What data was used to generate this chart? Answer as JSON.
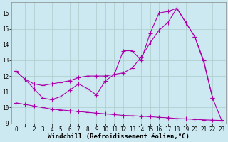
{
  "line1_x": [
    0,
    1,
    2,
    3,
    4,
    5,
    6,
    7,
    8,
    9,
    10,
    11,
    12,
    13,
    14,
    15,
    16,
    17,
    18,
    19,
    20,
    21,
    22
  ],
  "line1_y": [
    12.3,
    11.8,
    11.2,
    10.6,
    10.5,
    10.7,
    11.1,
    11.5,
    11.2,
    10.8,
    11.7,
    12.1,
    13.6,
    13.6,
    13.0,
    14.7,
    16.0,
    16.1,
    16.3,
    15.4,
    14.5,
    12.9,
    10.6
  ],
  "line2_x": [
    0,
    1,
    2,
    3,
    4,
    5,
    6,
    7,
    8,
    9,
    10,
    11,
    12,
    13,
    14,
    15,
    16,
    17,
    18,
    19,
    20,
    21,
    22,
    23
  ],
  "line2_y": [
    12.3,
    11.8,
    11.5,
    11.4,
    11.5,
    11.6,
    11.7,
    11.9,
    12.0,
    12.0,
    12.0,
    12.1,
    12.2,
    12.5,
    13.2,
    14.1,
    14.9,
    15.4,
    16.3,
    15.4,
    14.5,
    13.0,
    10.6,
    9.2
  ],
  "line3_x": [
    0,
    1,
    2,
    3,
    4,
    5,
    6,
    7,
    8,
    9,
    10,
    11,
    12,
    13,
    14,
    15,
    16,
    17,
    18,
    19,
    20,
    21,
    22,
    23
  ],
  "line3_y": [
    10.3,
    10.2,
    10.1,
    10.0,
    9.9,
    9.85,
    9.8,
    9.75,
    9.7,
    9.65,
    9.6,
    9.55,
    9.5,
    9.48,
    9.45,
    9.42,
    9.38,
    9.35,
    9.3,
    9.28,
    9.25,
    9.22,
    9.2,
    9.18
  ],
  "xlim": [
    -0.5,
    23.5
  ],
  "ylim": [
    9,
    16.7
  ],
  "yticks": [
    9,
    10,
    11,
    12,
    13,
    14,
    15,
    16
  ],
  "xticks": [
    0,
    1,
    2,
    3,
    4,
    5,
    6,
    7,
    8,
    9,
    10,
    11,
    12,
    13,
    14,
    15,
    16,
    17,
    18,
    19,
    20,
    21,
    22,
    23
  ],
  "xlabel": "Windchill (Refroidissement éolien,°C)",
  "background_color": "#cce8f0",
  "grid_color": "#aacccc",
  "line_color": "#aa00aa",
  "marker": "+",
  "markersize": 4,
  "linewidth": 0.8,
  "tick_fontsize": 5.5,
  "xlabel_fontsize": 6.5
}
